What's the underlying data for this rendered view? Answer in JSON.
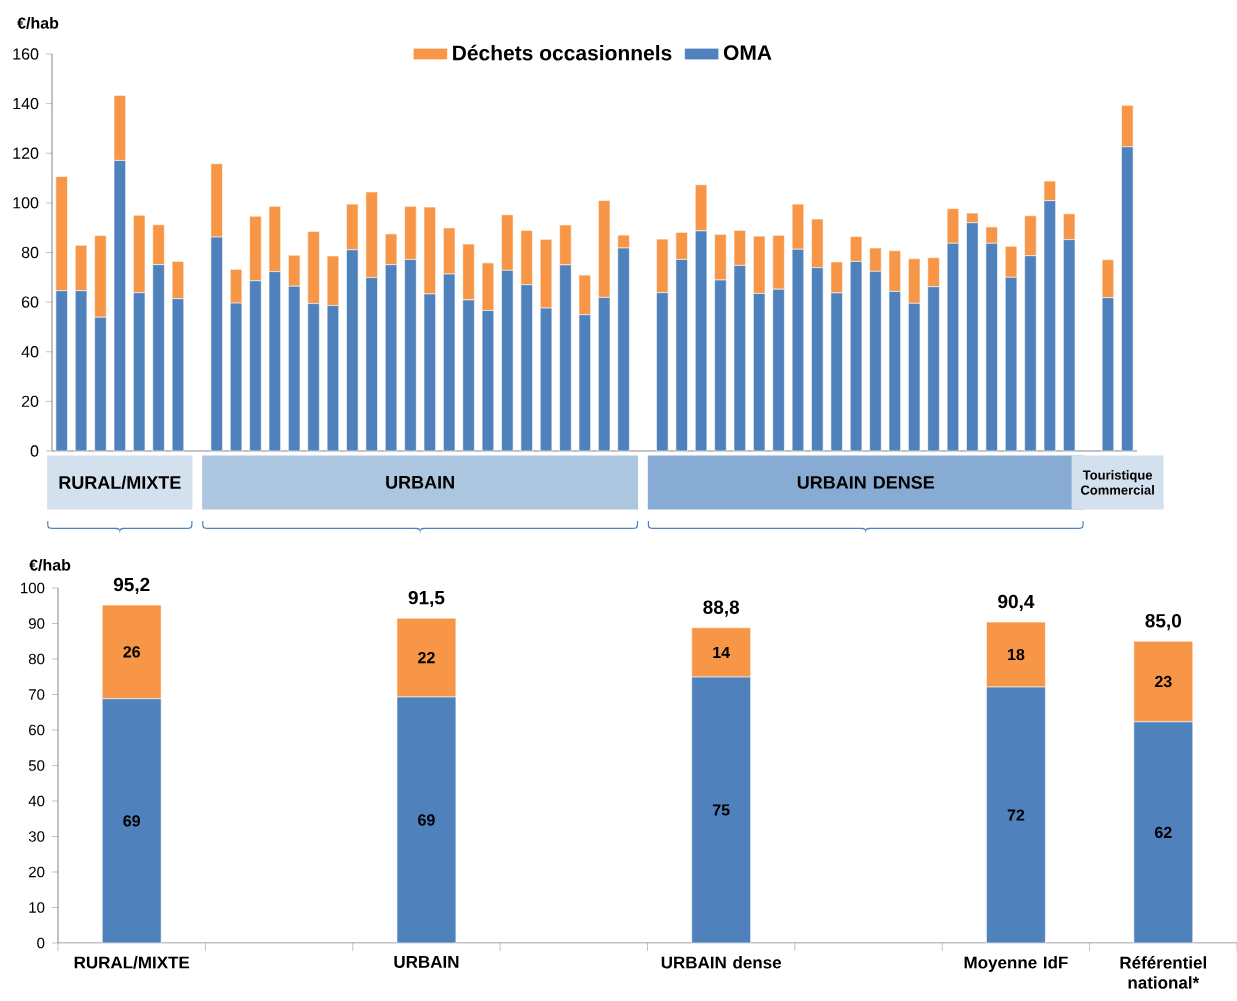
{
  "chart_data": [
    {
      "type": "bar",
      "stacked": true,
      "ylabel": "€/hab",
      "legend": "top",
      "categories": [
        null,
        null,
        null,
        null,
        null,
        null,
        null,
        null,
        null,
        null,
        null,
        null,
        null,
        null,
        null,
        null,
        null,
        null,
        null,
        null,
        null,
        null,
        null,
        null,
        null,
        null,
        null,
        null,
        null,
        null,
        null,
        null,
        null,
        null,
        null,
        null,
        null,
        null,
        null,
        null,
        null,
        null,
        null,
        null,
        null,
        null,
        null,
        null,
        null,
        null,
        null,
        null,
        null,
        null,
        null,
        null
      ],
      "series": [
        {
          "name": "OMA",
          "color": "#4f81bd",
          "values": [
            64.6,
            64.6,
            53.9,
            117.1,
            63.8,
            75.1,
            61.4,
            null,
            86.2,
            59.6,
            68.6,
            72.3,
            66.4,
            59.4,
            58.6,
            81.1,
            69.9,
            75.1,
            77.2,
            63.3,
            71.3,
            60.9,
            56.6,
            72.8,
            67.0,
            57.6,
            75.0,
            54.9,
            61.9,
            81.8,
            null,
            63.8,
            77.2,
            88.7,
            68.9,
            74.8,
            63.5,
            65.2,
            81.3,
            73.9,
            63.7,
            76.4,
            72.4,
            64.3,
            59.5,
            66.2,
            83.7,
            92.0,
            83.7,
            70.0,
            78.7,
            100.9,
            85.2,
            null,
            61.8,
            122.6
          ]
        },
        {
          "name": "Déchets occasionnels",
          "color": "#f79646",
          "values": [
            46.0,
            18.3,
            32.9,
            26.2,
            31.2,
            16.1,
            15.0,
            null,
            29.6,
            13.6,
            26.0,
            26.3,
            12.5,
            29.1,
            20.0,
            18.4,
            34.5,
            12.4,
            21.4,
            35.0,
            18.6,
            22.5,
            19.2,
            22.4,
            21.9,
            27.7,
            16.1,
            16.0,
            39.1,
            5.2,
            null,
            21.6,
            10.9,
            18.6,
            18.4,
            14.1,
            23.1,
            21.7,
            18.2,
            19.6,
            12.5,
            10.0,
            9.4,
            16.4,
            18.0,
            11.7,
            14.0,
            3.9,
            6.6,
            12.5,
            16.1,
            7.9,
            10.4,
            null,
            15.3,
            16.7
          ]
        }
      ],
      "ylim": [
        0,
        160
      ],
      "yticks": [
        0,
        20,
        40,
        60,
        80,
        100,
        120,
        140,
        160
      ],
      "annotations": [
        "RURAL/MIXTE",
        "URBAIN",
        "URBAIN DENSE",
        "Touristique Commercial"
      ]
    },
    {
      "type": "bar",
      "stacked": true,
      "ylabel": "€/hab",
      "categories": [
        "RURAL/MIXTE",
        null,
        "URBAIN",
        null,
        "URBAIN dense",
        null,
        "Moyenne IdF",
        "Référentiel national*"
      ],
      "series": [
        {
          "color": "#4f81bd",
          "values": [
            68.8,
            null,
            69.3,
            null,
            74.9,
            null,
            72.1,
            62.3
          ],
          "value_labels": [
            "69",
            null,
            "69",
            null,
            "75",
            null,
            "72",
            "62"
          ]
        },
        {
          "color": "#f79646",
          "values": [
            26.4,
            null,
            22.2,
            null,
            13.9,
            null,
            18.3,
            22.7
          ],
          "value_labels": [
            "26",
            null,
            "22",
            null,
            "14",
            null,
            "18",
            "23"
          ]
        }
      ],
      "totals": [
        "95,2",
        null,
        "91,5",
        null,
        "88,8",
        null,
        "90,4",
        "85,0"
      ],
      "ylim": [
        0,
        100
      ],
      "yticks": [
        0,
        10,
        20,
        30,
        40,
        50,
        60,
        70,
        80,
        90,
        100
      ]
    }
  ]
}
